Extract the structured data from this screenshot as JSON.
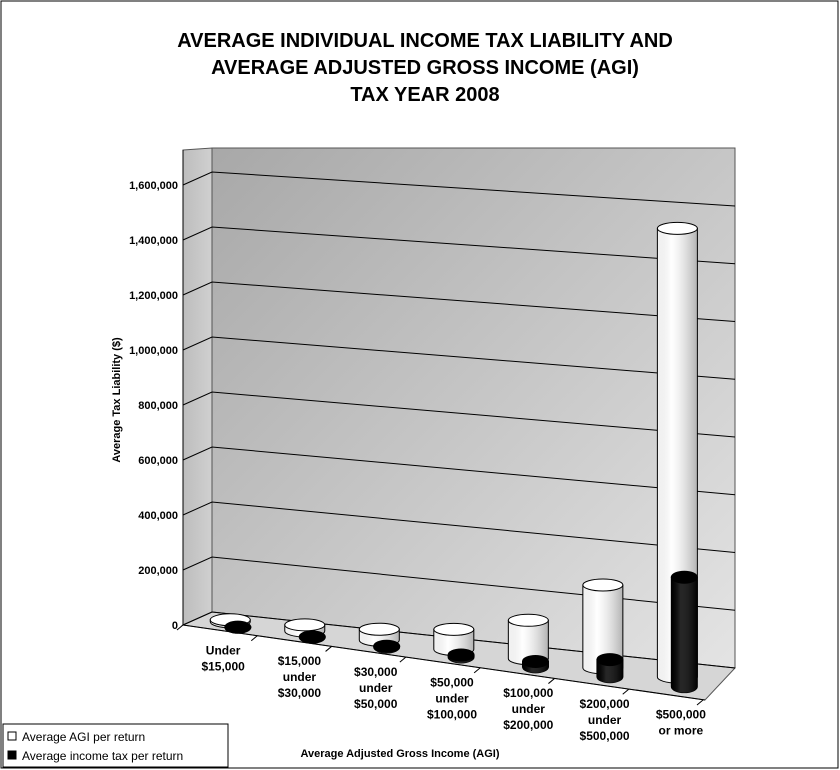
{
  "chart_data": {
    "type": "cylinder",
    "title": [
      "AVERAGE INDIVIDUAL INCOME TAX LIABILITY AND",
      "AVERAGE ADJUSTED GROSS INCOME (AGI)",
      "TAX YEAR 2008"
    ],
    "y_label": "Average Tax Liability ($)",
    "x_label": "Average Adjusted Gross Income (AGI)",
    "categories": [
      [
        "Under",
        "$15,000"
      ],
      [
        "$15,000",
        "under",
        "$30,000"
      ],
      [
        "$30,000",
        "under",
        "$50,000"
      ],
      [
        "$50,000",
        "under",
        "$100,000"
      ],
      [
        "$100,000",
        "under",
        "$200,000"
      ],
      [
        "$200,000",
        "under",
        "$500,000"
      ],
      [
        "$500,000",
        "or more"
      ]
    ],
    "series": [
      {
        "name": "Average AGI per return",
        "color": "#ffffff",
        "values": [
          7000,
          22000,
          39000,
          71000,
          135000,
          290000,
          1560000
        ]
      },
      {
        "name": "Average income tax per return",
        "color": "#000000",
        "values": [
          200,
          1000,
          3000,
          7000,
          19000,
          60000,
          380000
        ]
      }
    ],
    "ylim": [
      0,
      1700000
    ],
    "yticks": [
      {
        "value": 0,
        "label": "0"
      },
      {
        "value": 200000,
        "label": "200,000"
      },
      {
        "value": 400000,
        "label": "400,000"
      },
      {
        "value": 600000,
        "label": "600,000"
      },
      {
        "value": 800000,
        "label": "800,000"
      },
      {
        "value": 1000000,
        "label": "1,000,000"
      },
      {
        "value": 1200000,
        "label": "1,200,000"
      },
      {
        "value": 1400000,
        "label": "1,400,000"
      },
      {
        "value": 1600000,
        "label": "1,600,000"
      }
    ],
    "grid": true,
    "legend": "bottom-left"
  }
}
